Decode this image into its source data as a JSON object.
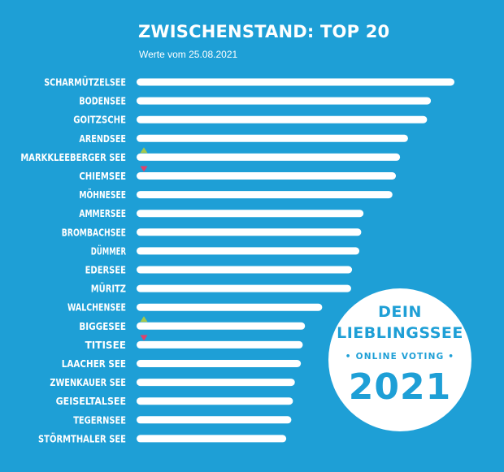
{
  "header": {
    "title": "ZWISCHENSTAND: TOP 20",
    "subtitle": "Werte vom 25.08.2021"
  },
  "badge": {
    "line1": "DEIN",
    "line2": "LIEBLINGSSEE",
    "line3": "• ONLINE VOTING •",
    "year": "2021"
  },
  "colors": {
    "background": "#1e9fd6",
    "bar": "#ffffff",
    "trend_up": "#a6c94a",
    "trend_down": "#e0426b"
  },
  "chart_data": {
    "type": "bar",
    "orientation": "horizontal",
    "title": "ZWISCHENSTAND: TOP 20",
    "subtitle": "Werte vom 25.08.2021",
    "value_axis_shown": false,
    "xlim": [
      0,
      100
    ],
    "categories": [
      "SCHARMÜTZELSEE",
      "BODENSEE",
      "GOITZSCHE",
      "ARENDSEE",
      "MARKKLEEBERGER SEE",
      "CHIEMSEE",
      "MÖHNESEE",
      "AMMERSEE",
      "BROMBACHSEE",
      "DÜMMER",
      "EDERSEE",
      "MÜRITZ",
      "WALCHENSEE",
      "BIGGESEE",
      "TITISEE",
      "LAACHER SEE",
      "ZWENKAUER SEE",
      "GEISELTALSEE",
      "TEGERNSEE",
      "STÖRMTHALER SEE"
    ],
    "values": [
      100,
      92.6,
      91.4,
      85.4,
      82.9,
      81.6,
      80.5,
      71.4,
      70.7,
      70.1,
      67.8,
      67.5,
      58.4,
      53.0,
      52.3,
      51.7,
      49.8,
      49.2,
      48.7,
      47.1
    ],
    "trend": [
      "",
      "",
      "",
      "",
      "up",
      "down",
      "",
      "",
      "",
      "",
      "",
      "",
      "",
      "up",
      "down",
      "",
      "",
      "",
      "",
      ""
    ]
  }
}
